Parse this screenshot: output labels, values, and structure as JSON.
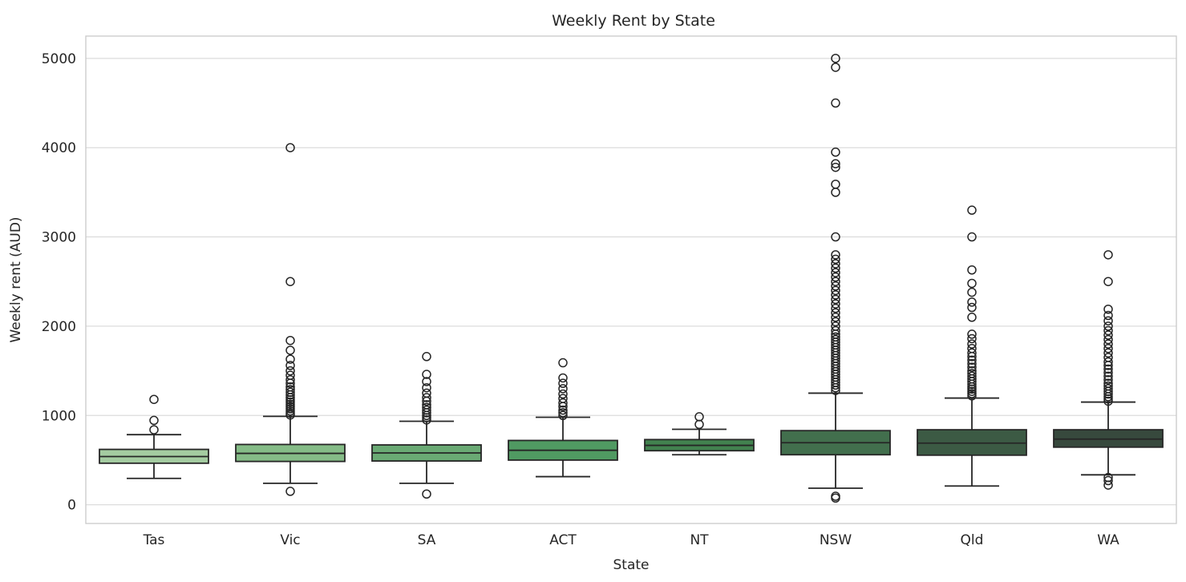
{
  "figure": {
    "background": "#ffffff"
  },
  "chart_data": {
    "type": "box",
    "title": "Weekly Rent by State",
    "xlabel": "State",
    "ylabel": "Weekly rent (AUD)",
    "categories": [
      "Tas",
      "Vic",
      "SA",
      "ACT",
      "NT",
      "NSW",
      "Qld",
      "WA"
    ],
    "y_ticks": [
      0,
      1000,
      2000,
      3000,
      4000,
      5000
    ],
    "ylim": [
      -210,
      5250
    ],
    "grid": "horizontal",
    "legend": "none",
    "box_edge_color": "#262626",
    "series": [
      {
        "name": "Tas",
        "color": "#a4cca1",
        "whisker_low": 295,
        "q1": 465,
        "median": 540,
        "q3": 620,
        "whisker_high": 785,
        "outliers_low": [],
        "outliers_high": [
          840,
          945,
          1180
        ]
      },
      {
        "name": "Vic",
        "color": "#85bc87",
        "whisker_low": 240,
        "q1": 485,
        "median": 575,
        "q3": 675,
        "whisker_high": 990,
        "outliers_low": [
          150
        ],
        "outliers_high": [
          1005,
          1025,
          1050,
          1075,
          1100,
          1125,
          1150,
          1175,
          1200,
          1230,
          1260,
          1290,
          1320,
          1360,
          1400,
          1450,
          1500,
          1560,
          1630,
          1730,
          1840,
          2500,
          4000
        ]
      },
      {
        "name": "SA",
        "color": "#6aaa74",
        "whisker_low": 240,
        "q1": 490,
        "median": 580,
        "q3": 670,
        "whisker_high": 935,
        "outliers_low": [
          120
        ],
        "outliers_high": [
          950,
          975,
          1000,
          1030,
          1060,
          1090,
          1120,
          1160,
          1200,
          1250,
          1310,
          1380,
          1460,
          1660
        ]
      },
      {
        "name": "ACT",
        "color": "#509a62",
        "whisker_low": 315,
        "q1": 500,
        "median": 610,
        "q3": 720,
        "whisker_high": 980,
        "outliers_low": [],
        "outliers_high": [
          1000,
          1030,
          1060,
          1100,
          1140,
          1190,
          1240,
          1300,
          1360,
          1420,
          1590
        ]
      },
      {
        "name": "NT",
        "color": "#42824f",
        "whisker_low": 560,
        "q1": 605,
        "median": 665,
        "q3": 730,
        "whisker_high": 845,
        "outliers_low": [],
        "outliers_high": [
          900,
          985
        ]
      },
      {
        "name": "NSW",
        "color": "#426f4d",
        "whisker_low": 185,
        "q1": 560,
        "median": 695,
        "q3": 830,
        "whisker_high": 1250,
        "outliers_low": [
          95,
          75
        ],
        "outliers_high": [
          1280,
          1310,
          1340,
          1370,
          1400,
          1430,
          1460,
          1490,
          1520,
          1550,
          1580,
          1610,
          1640,
          1670,
          1700,
          1730,
          1760,
          1790,
          1820,
          1850,
          1880,
          1910,
          1950,
          2000,
          2050,
          2100,
          2150,
          2200,
          2250,
          2300,
          2350,
          2400,
          2450,
          2500,
          2550,
          2600,
          2650,
          2700,
          2750,
          2800,
          3000,
          3500,
          3590,
          3780,
          3820,
          3950,
          4500,
          4900,
          5000
        ]
      },
      {
        "name": "Qld",
        "color": "#3c5a44",
        "whisker_low": 210,
        "q1": 555,
        "median": 690,
        "q3": 840,
        "whisker_high": 1195,
        "outliers_low": [],
        "outliers_high": [
          1220,
          1245,
          1270,
          1295,
          1320,
          1350,
          1380,
          1410,
          1440,
          1470,
          1500,
          1540,
          1580,
          1620,
          1660,
          1700,
          1750,
          1800,
          1860,
          1910,
          2100,
          2210,
          2270,
          2380,
          2480,
          2630,
          3000,
          3300
        ]
      },
      {
        "name": "WA",
        "color": "#37493d",
        "whisker_low": 335,
        "q1": 645,
        "median": 735,
        "q3": 840,
        "whisker_high": 1150,
        "outliers_low": [
          305,
          270,
          220
        ],
        "outliers_high": [
          1160,
          1185,
          1210,
          1240,
          1270,
          1300,
          1330,
          1360,
          1400,
          1440,
          1480,
          1520,
          1560,
          1600,
          1650,
          1700,
          1750,
          1800,
          1850,
          1900,
          1950,
          2000,
          2060,
          2120,
          2190,
          2500,
          2800
        ]
      }
    ]
  }
}
